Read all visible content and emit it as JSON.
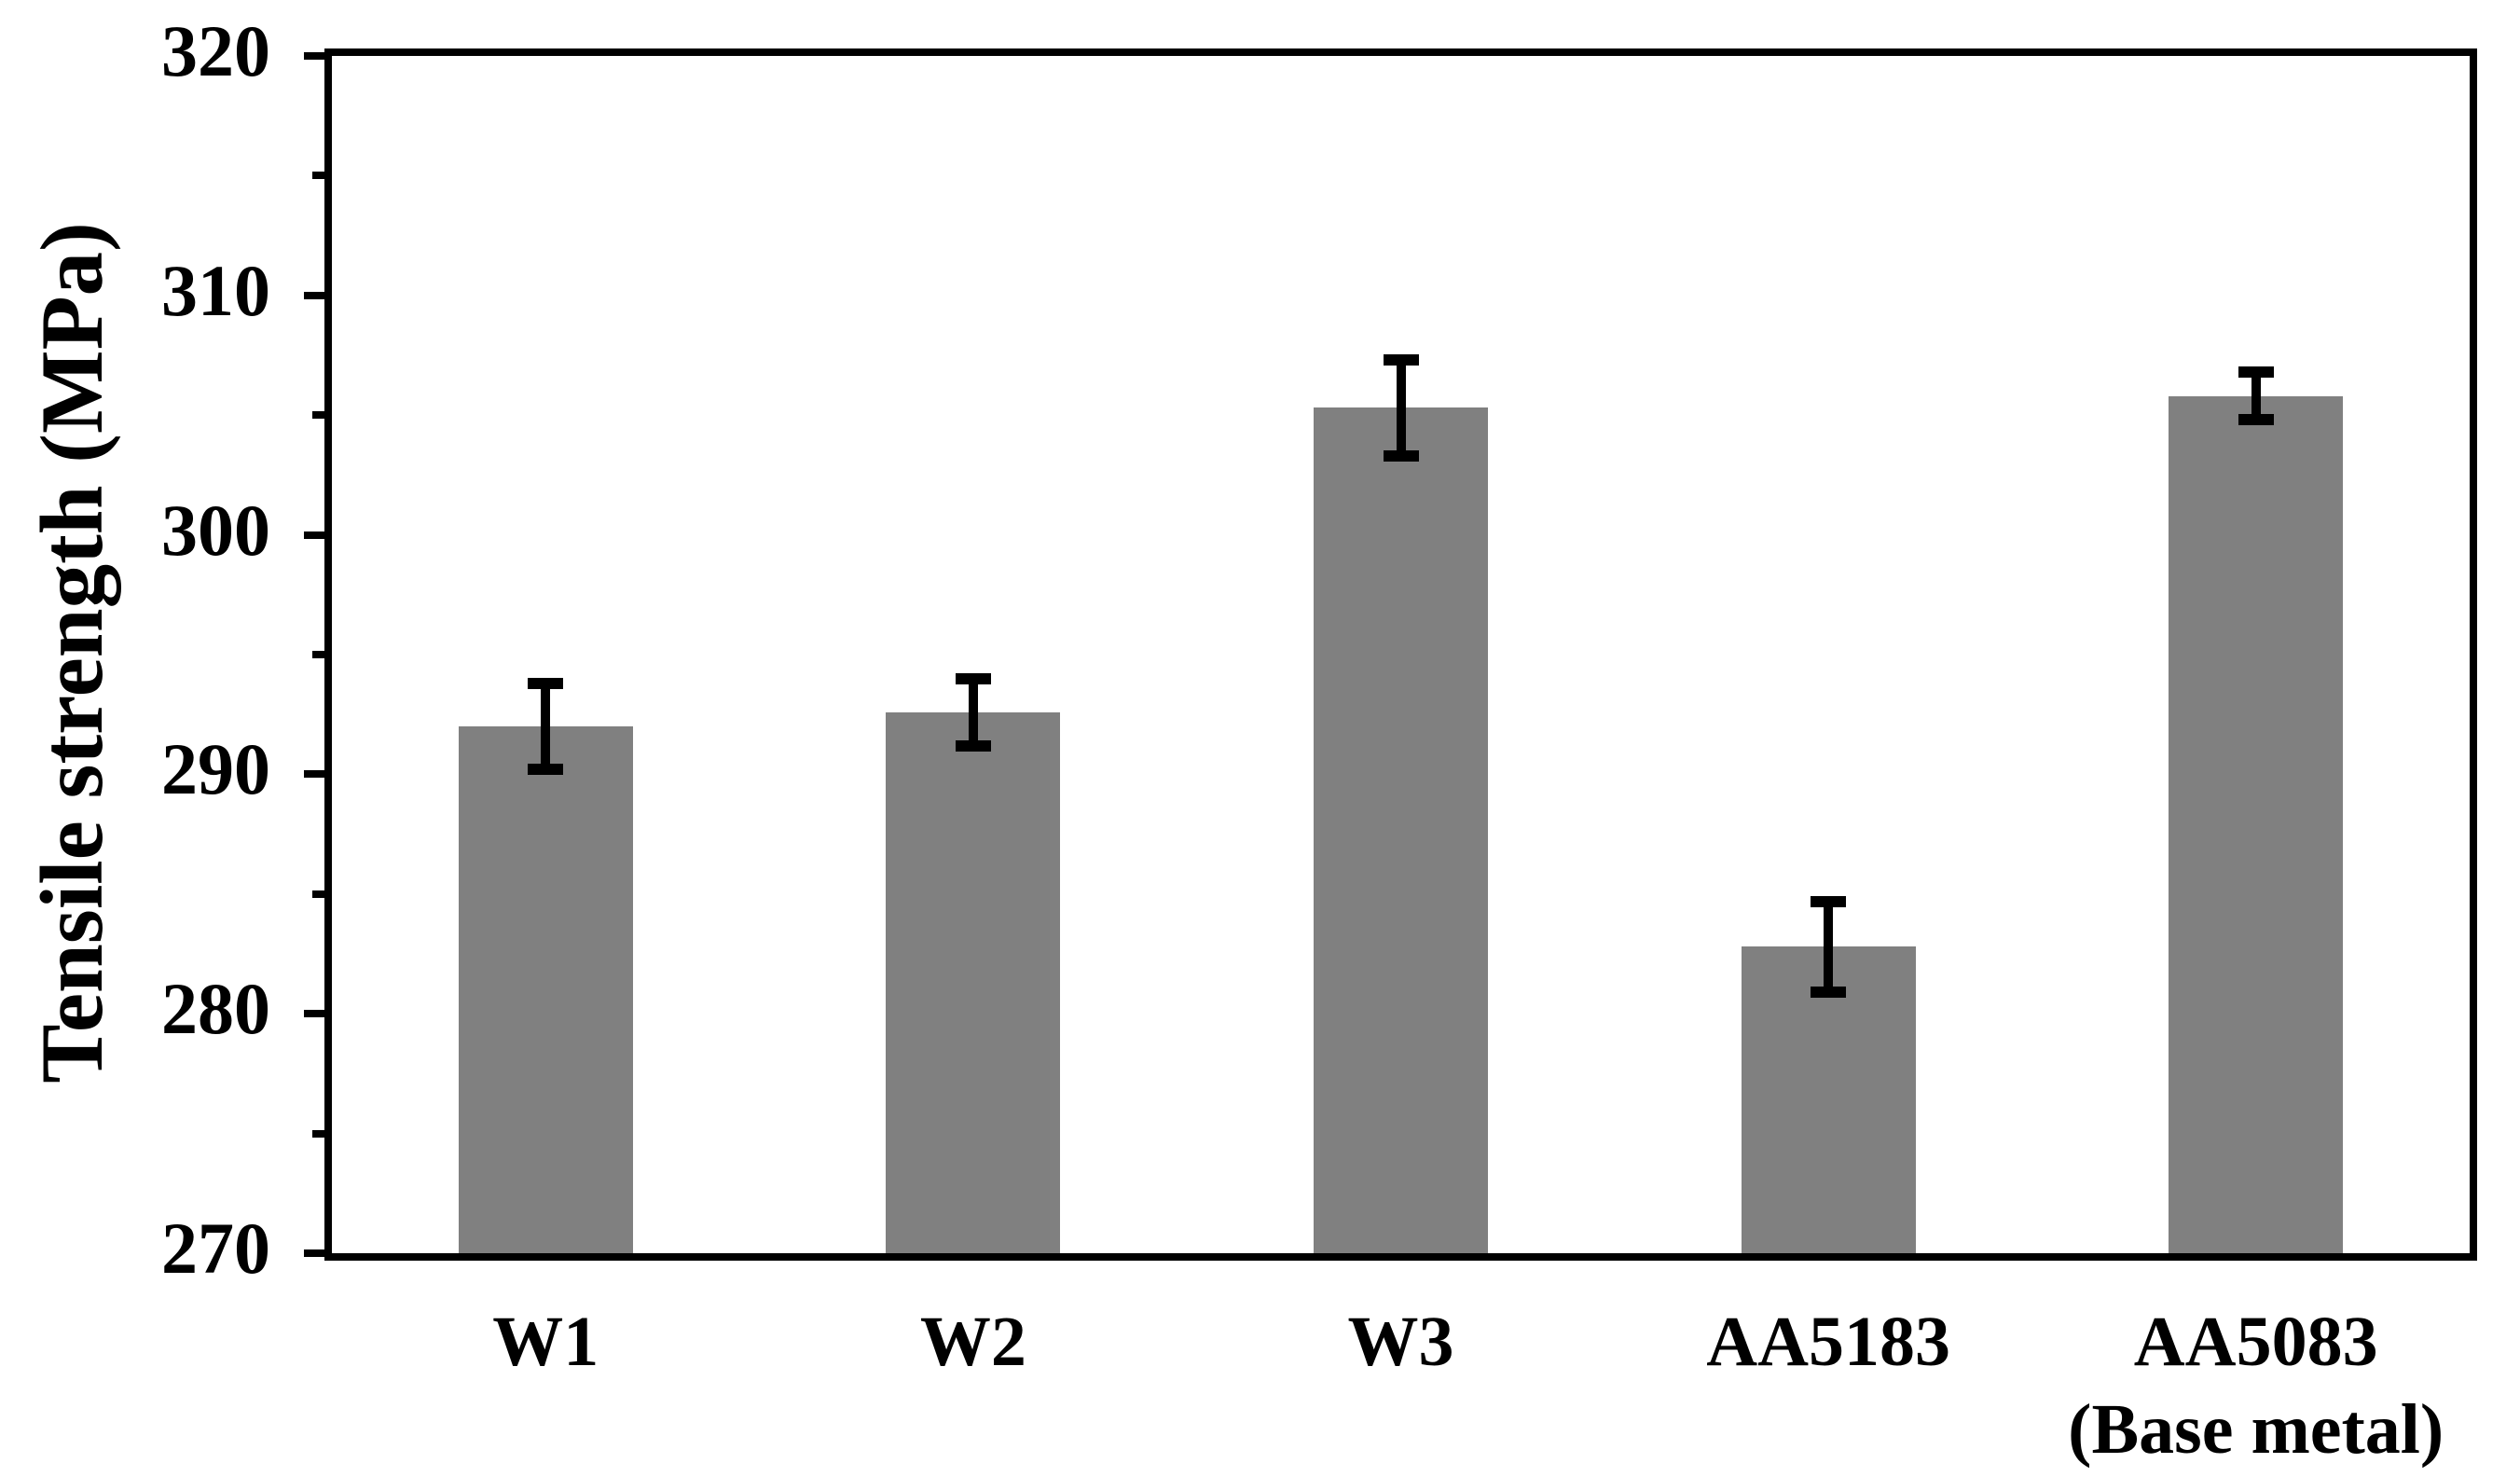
{
  "figure": {
    "background": "#ffffff",
    "text_color": "#000000"
  },
  "chart_data": {
    "type": "bar",
    "title": "",
    "xlabel": "",
    "ylabel": "Tensile strength (MPa)",
    "categories": [
      "W1",
      "W2",
      "W3",
      "AA5183",
      "AA5083\n(Base metal)"
    ],
    "values": [
      292.0,
      292.6,
      305.3,
      282.8,
      305.8
    ],
    "errors": [
      1.8,
      1.4,
      2.0,
      1.9,
      1.0
    ],
    "ylim": [
      270,
      320
    ],
    "ytick_major_step": 10,
    "ytick_minor_step": 5,
    "ytick_labels": [
      "270",
      "280",
      "290",
      "300",
      "310",
      "320"
    ],
    "grid": false,
    "legend": null,
    "frame": true,
    "bar_color": "#808080",
    "error_color": "#000000",
    "axis_color": "#000000"
  }
}
